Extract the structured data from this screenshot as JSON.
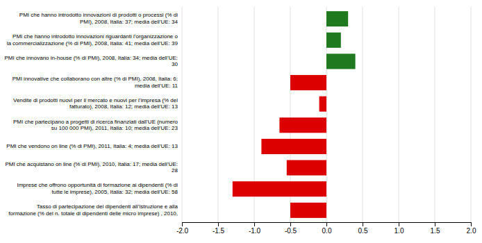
{
  "chart_data": {
    "type": "bar",
    "orientation": "horizontal",
    "categories": [
      "PMI che hanno introdotto innovazioni di prodotti o processi (% di\nPMI), 2008, Italia: 37; media dell’UE: 34",
      "PMI che hanno introdotto innovazioni riguardanti l’organizzazione o\nla commercializzazione (% di PMI), 2008, Italia: 41; media dell’UE: 39",
      "PMI che innovano in-house (% di PMI), 2008, Italia: 34; media dell’UE:\n30",
      "PMI innovative che collaborano con altre (% di PMI), 2008, Italia: 6;\nmedia dell’UE: 11",
      "Vendite di prodotti nuovi per il mercato e nuovi per l’impresa (% del\nfatturato), 2008, Italia: 12; media dell’UE: 13",
      "PMI che partecipano a progetti di ricerca finanziati dall’UE (numero\nsu 100 000 PMI), 2011, Italia: 10; media dell’UE: 23",
      "PMI che vendono on line (% di PMI), 2011, Italia: 4; media dell’UE: 13",
      "PMI che acquistano on line (% di PMI), 2010, Italia: 17; media dell’UE:\n28",
      "Imprese che offrono opportunità di formazione ai dipendenti (% di\ntutte le imprese), 2005, Italia: 32; media dell’UE: 58",
      "Tasso di partecipazione dei dipendenti all’istruzione e alla\nformazione (% del n. totale di dipendenti delle micro imprese) , 2010,"
    ],
    "values": [
      0.3,
      0.2,
      0.4,
      -0.5,
      -0.1,
      -0.65,
      -0.9,
      -0.55,
      -1.3,
      -0.5
    ],
    "colors": [
      "#1f7a1f",
      "#1f7a1f",
      "#1f7a1f",
      "#dd0000",
      "#dd0000",
      "#dd0000",
      "#dd0000",
      "#dd0000",
      "#dd0000",
      "#dd0000"
    ],
    "xlim": [
      -2.0,
      2.0
    ],
    "xticks": [
      {
        "value": -2.0,
        "label": "-2.0"
      },
      -1.5,
      {
        "value": -1.0,
        "label": "-1.0"
      },
      -0.5,
      {
        "value": 0.0,
        "label": "0.0"
      },
      0.5,
      {
        "value": 1.0,
        "label": "1.0"
      },
      1.5,
      {
        "value": 2.0,
        "label": "2.0"
      }
    ],
    "grid": true
  }
}
